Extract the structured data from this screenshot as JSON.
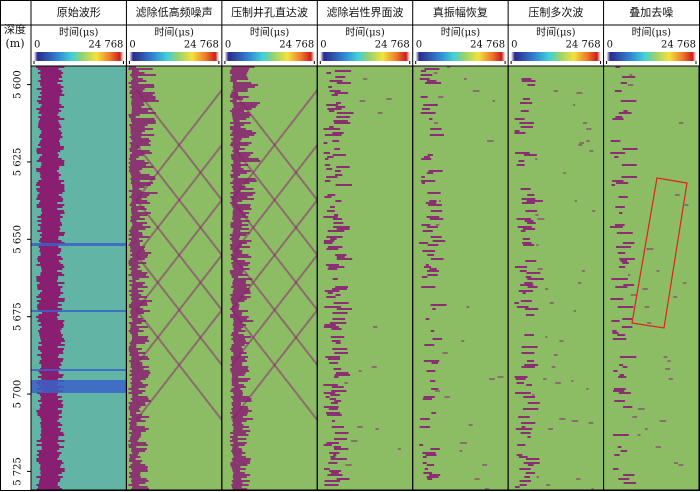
{
  "depth_axis": {
    "label": "深度",
    "unit": "(m)",
    "ylim": [
      5594,
      5731
    ],
    "ticks": [
      {
        "value": 5600,
        "label": "5 600"
      },
      {
        "value": 5625,
        "label": "5 625"
      },
      {
        "value": 5650,
        "label": "5 650"
      },
      {
        "value": 5675,
        "label": "5 675"
      },
      {
        "value": 5700,
        "label": "5 700"
      },
      {
        "value": 5725,
        "label": "5 725"
      }
    ]
  },
  "colorbar": {
    "label": "时间(μs)",
    "lim": [
      0,
      24768
    ],
    "ticks": [
      0,
      {
        "value": 24768,
        "label": "24 768"
      }
    ]
  },
  "panels": [
    {
      "title": "原始波形"
    },
    {
      "title": "滤除低高频噪声"
    },
    {
      "title": "压制井孔直达波"
    },
    {
      "title": "滤除岩性界面波"
    },
    {
      "title": "真振幅恢复"
    },
    {
      "title": "压制多次波"
    },
    {
      "title": "叠加去噪"
    }
  ]
}
